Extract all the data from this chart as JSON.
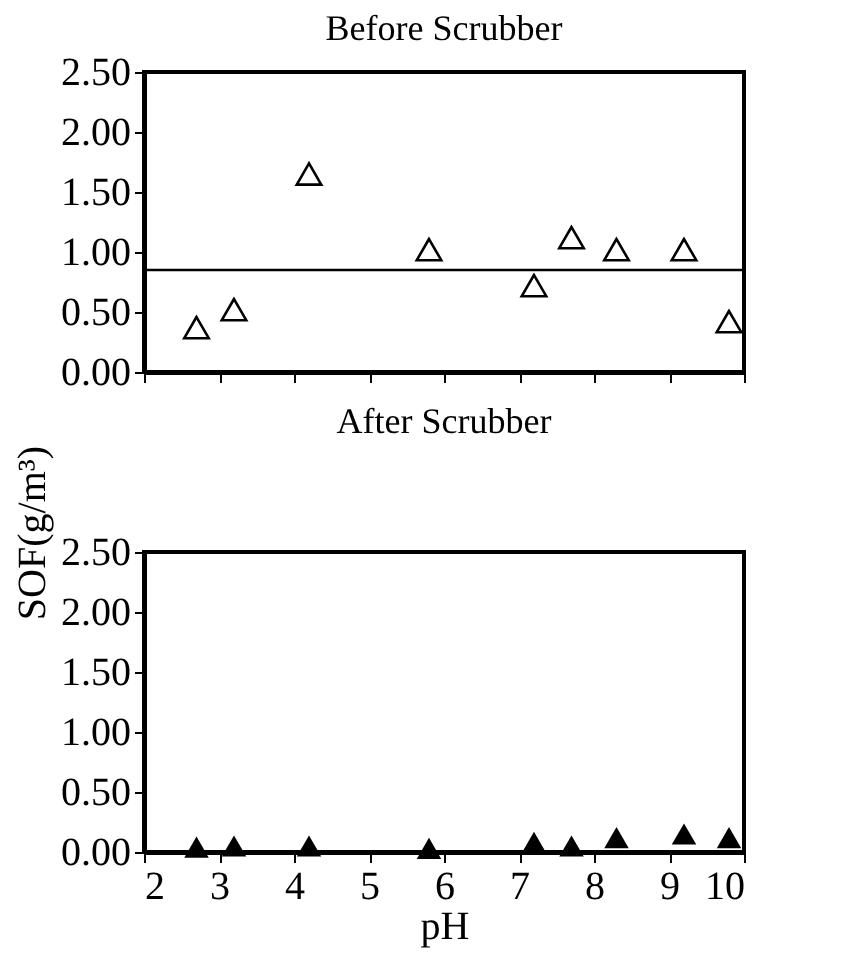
{
  "chart_data": [
    {
      "type": "scatter",
      "title": "Before Scrubber",
      "marker": "triangle",
      "grid": false,
      "tick_labels": "y",
      "x": [
        2.7,
        3.2,
        4.2,
        5.8,
        7.2,
        7.7,
        8.3,
        9.2,
        9.8
      ],
      "series": [
        {
          "color": "#000000",
          "values": [
            0.37,
            0.52,
            1.65,
            1.02,
            0.72,
            1.12,
            1.02,
            1.02,
            0.42
          ]
        }
      ],
      "xlim": [
        2,
        10
      ],
      "xticks": [
        2,
        3,
        4,
        5,
        6,
        7,
        8,
        9,
        10
      ],
      "ylim": [
        0,
        2.5
      ],
      "yticks": [
        {
          "value": 0,
          "label": "0.00"
        },
        {
          "value": 0.5,
          "label": "0.50"
        },
        {
          "value": 1,
          "label": "1.00"
        },
        {
          "value": 1.5,
          "label": "1.50"
        },
        {
          "value": 2,
          "label": "2.00"
        },
        {
          "value": 2.5,
          "label": "2.50"
        }
      ],
      "ref_lines": [
        {
          "axis": "y",
          "value": 0.85,
          "color": "#000000"
        }
      ]
    },
    {
      "type": "scatter",
      "title": "After Scrubber",
      "marker": "triangle",
      "grid": false,
      "xlabel": "pH",
      "ylabel": "SOF(g/m³)",
      "x": [
        2.7,
        3.2,
        4.2,
        5.8,
        7.2,
        7.7,
        8.3,
        9.2,
        9.8
      ],
      "series": [
        {
          "color": "#000000",
          "values": [
            0.04,
            0.05,
            0.05,
            0.03,
            0.08,
            0.05,
            0.12,
            0.15,
            0.12
          ]
        }
      ],
      "xlim": [
        2,
        10
      ],
      "xticks": [
        2,
        3,
        4,
        5,
        6,
        7,
        8,
        9,
        10
      ],
      "ylim": [
        0,
        2.5
      ],
      "yticks": [
        {
          "value": 0,
          "label": "0.00"
        },
        {
          "value": 0.5,
          "label": "0.50"
        },
        {
          "value": 1,
          "label": "1.00"
        },
        {
          "value": 1.5,
          "label": "1.50"
        },
        {
          "value": 2,
          "label": "2.00"
        },
        {
          "value": 2.5,
          "label": "2.50"
        }
      ]
    }
  ]
}
